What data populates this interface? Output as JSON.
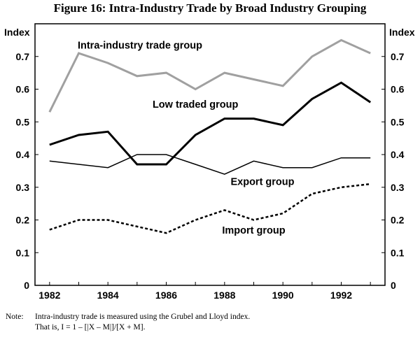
{
  "chart_data": {
    "type": "line",
    "title": "Figure 16: Intra-Industry Trade by Broad Industry Grouping",
    "ylabel_left": "Index",
    "ylabel_right": "Index",
    "xlabel": "",
    "ylim": [
      0,
      0.8
    ],
    "yticks": [
      0,
      0.1,
      0.2,
      0.3,
      0.4,
      0.5,
      0.6,
      0.7
    ],
    "ytick_labels": [
      "0",
      "0.1",
      "0.2",
      "0.3",
      "0.4",
      "0.5",
      "0.6",
      "0.7"
    ],
    "xlim": [
      1981.5,
      1993.5
    ],
    "x": [
      1982,
      1983,
      1984,
      1985,
      1986,
      1987,
      1988,
      1989,
      1990,
      1991,
      1992,
      1993
    ],
    "xtick_labels": [
      "1982",
      "1984",
      "1986",
      "1988",
      "1990",
      "1992"
    ],
    "grid": false,
    "series": [
      {
        "name": "Intra-industry trade group",
        "color": "#a0a0a0",
        "style": "solid-thick",
        "values": [
          0.53,
          0.71,
          0.68,
          0.64,
          0.65,
          0.6,
          0.65,
          0.63,
          0.61,
          0.7,
          0.75,
          0.71
        ]
      },
      {
        "name": "Low traded group",
        "color": "#000000",
        "style": "solid-thick",
        "values": [
          0.43,
          0.46,
          0.47,
          0.37,
          0.37,
          0.46,
          0.51,
          0.51,
          0.49,
          0.57,
          0.62,
          0.56
        ]
      },
      {
        "name": "Export group",
        "color": "#000000",
        "style": "solid-thin",
        "values": [
          0.38,
          0.37,
          0.36,
          0.4,
          0.4,
          0.37,
          0.34,
          0.38,
          0.36,
          0.36,
          0.39,
          0.39
        ]
      },
      {
        "name": "Import group",
        "color": "#000000",
        "style": "dashed",
        "values": [
          0.17,
          0.2,
          0.2,
          0.18,
          0.16,
          0.2,
          0.23,
          0.2,
          0.22,
          0.28,
          0.3,
          0.31
        ]
      }
    ]
  },
  "note": {
    "label": "Note:",
    "line1": "Intra-industry trade is measured using the Grubel and Lloyd index.",
    "line2": "That is, I = 1 – [|X – M|]/[X + M]."
  }
}
